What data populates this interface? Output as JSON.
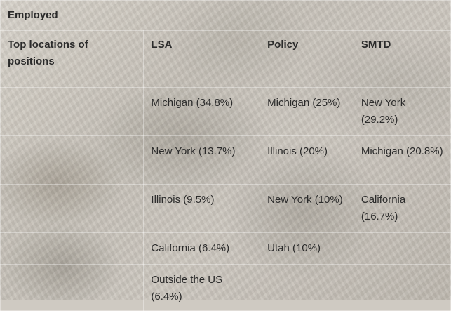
{
  "table": {
    "section_label": "Employed",
    "row_header": "Top locations of positions",
    "columns": [
      "LSA",
      "Policy",
      "SMTD"
    ],
    "rows": [
      [
        "Michigan (34.8%)",
        "Michigan (25%)",
        "New York (29.2%)"
      ],
      [
        "New York (13.7%)",
        "Illinois (20%)",
        "Michigan (20.8%)"
      ],
      [
        "Illinois (9.5%)",
        "New York (10%)",
        "California (16.7%)"
      ],
      [
        "California (6.4%)",
        "Utah (10%)",
        ""
      ],
      [
        "Outside the US (6.4%)",
        "",
        ""
      ]
    ]
  }
}
